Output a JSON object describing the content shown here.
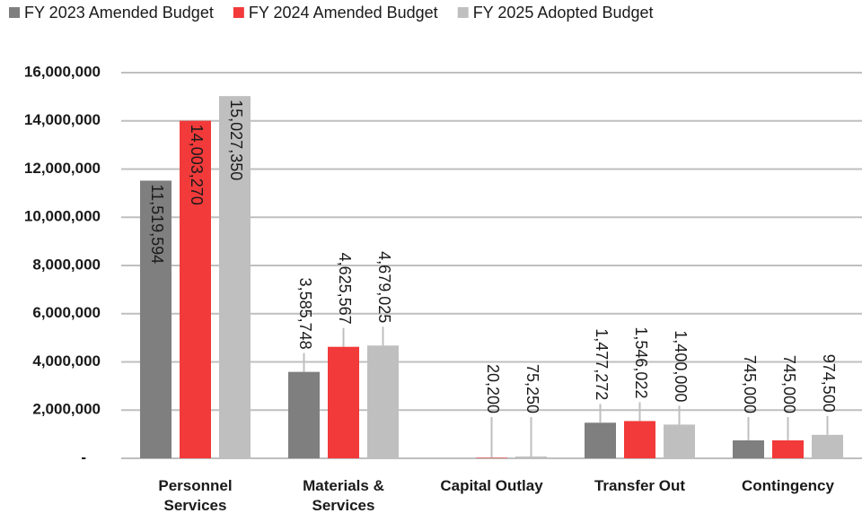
{
  "chart_data": {
    "type": "bar",
    "categories": [
      "Personnel Services",
      "Materials & Services",
      "Capital Outlay",
      "Transfer Out",
      "Contingency"
    ],
    "series": [
      {
        "name": "FY 2023 Amended Budget",
        "color": "#7f7f7f",
        "values": [
          11519594,
          3585748,
          0,
          1477272,
          745000
        ],
        "value_labels": [
          "11,519,594",
          "3,585,748",
          null,
          "1,477,272",
          "745,000"
        ]
      },
      {
        "name": "FY 2024 Amended Budget",
        "color": "#f23a3a",
        "values": [
          14003270,
          4625567,
          20200,
          1546022,
          745000
        ],
        "value_labels": [
          "14,003,270",
          "4,625,567",
          "20,200",
          "1,546,022",
          "745,000"
        ]
      },
      {
        "name": "FY 2025 Adopted Budget",
        "color": "#bfbfbf",
        "values": [
          15027350,
          4679025,
          75250,
          1400000,
          974500
        ],
        "value_labels": [
          "15,027,350",
          "4,679,025",
          "75,250",
          "1,400,000",
          "974,500"
        ]
      }
    ],
    "ylim": [
      0,
      16000000
    ],
    "yticks": [
      {
        "value": 0,
        "label": "-"
      },
      {
        "value": 2000000,
        "label": "2,000,000"
      },
      {
        "value": 4000000,
        "label": "4,000,000"
      },
      {
        "value": 6000000,
        "label": "6,000,000"
      },
      {
        "value": 8000000,
        "label": "8,000,000"
      },
      {
        "value": 10000000,
        "label": "10,000,000"
      },
      {
        "value": 12000000,
        "label": "12,000,000"
      },
      {
        "value": 14000000,
        "label": "14,000,000"
      },
      {
        "value": 16000000,
        "label": "16,000,000"
      }
    ],
    "grid": true,
    "legend": "top"
  }
}
